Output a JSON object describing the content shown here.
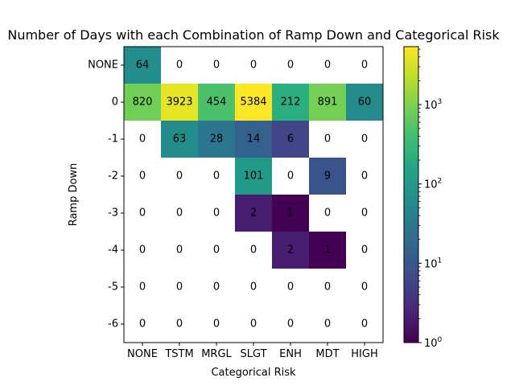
{
  "chart_data": {
    "type": "heatmap",
    "title": "Number of Days with each Combination of Ramp Down and Categorical Risk",
    "xlabel": "Categorical Risk",
    "ylabel": "Ramp Down",
    "x_categories": [
      "NONE",
      "TSTM",
      "MRGL",
      "SLGT",
      "ENH",
      "MDT",
      "HIGH"
    ],
    "y_categories": [
      "NONE",
      "0",
      "-1",
      "-2",
      "-3",
      "-4",
      "-5",
      "-6"
    ],
    "values": [
      [
        64,
        0,
        0,
        0,
        0,
        0,
        0
      ],
      [
        820,
        3923,
        454,
        5384,
        212,
        891,
        60
      ],
      [
        0,
        63,
        28,
        14,
        6,
        0,
        0
      ],
      [
        0,
        0,
        0,
        101,
        0,
        9,
        0
      ],
      [
        0,
        0,
        0,
        2,
        1,
        0,
        0
      ],
      [
        0,
        0,
        0,
        0,
        2,
        1,
        0
      ],
      [
        0,
        0,
        0,
        0,
        0,
        0,
        0
      ],
      [
        0,
        0,
        0,
        0,
        0,
        0,
        0
      ]
    ],
    "colormap": "viridis",
    "color_scale": "log",
    "zero_color": "#ffffff",
    "vmin": 1,
    "vmax": 5384,
    "colorbar_ticks": [
      {
        "value": 1,
        "base": "10",
        "exp": "0"
      },
      {
        "value": 10,
        "base": "10",
        "exp": "1"
      },
      {
        "value": 100,
        "base": "10",
        "exp": "2"
      },
      {
        "value": 1000,
        "base": "10",
        "exp": "3"
      }
    ]
  }
}
